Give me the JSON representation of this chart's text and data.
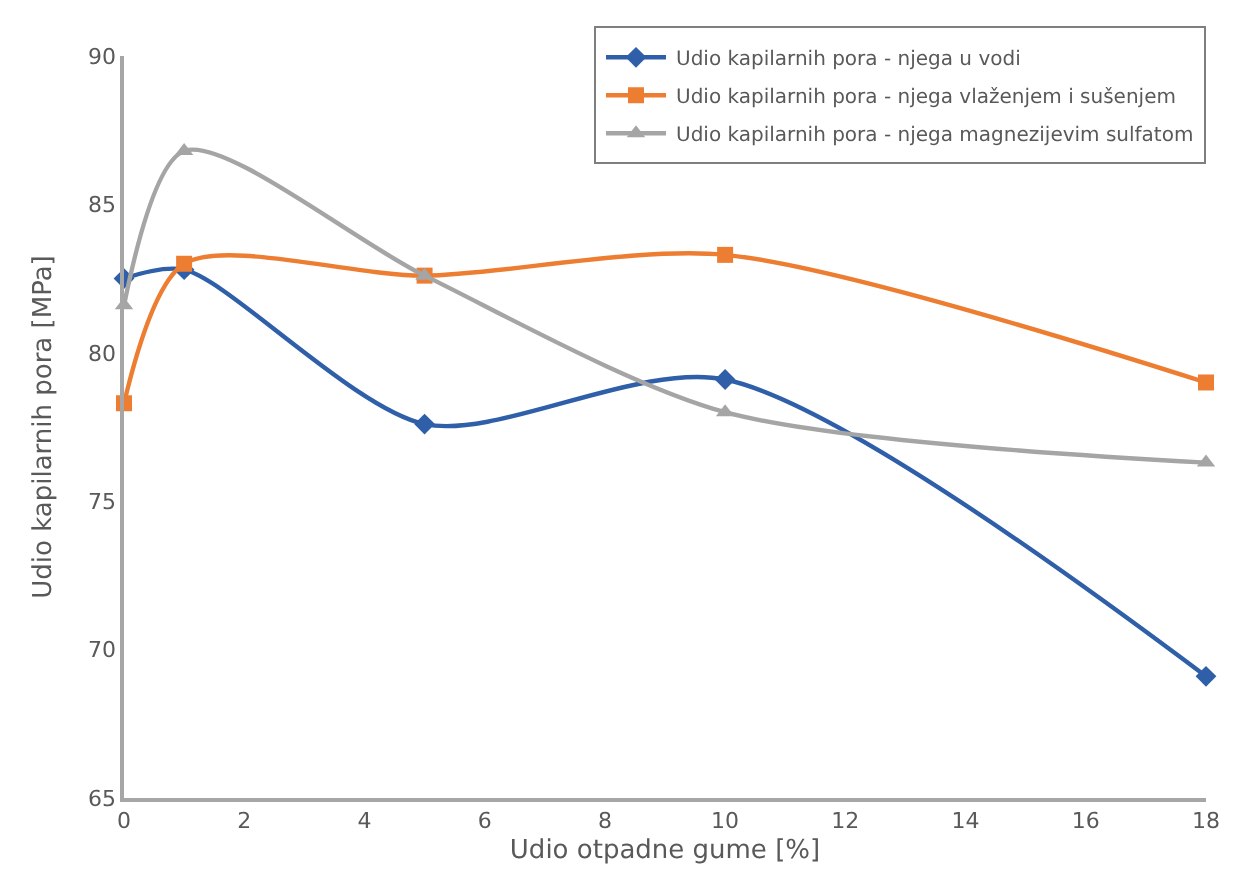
{
  "chart_data": {
    "type": "line",
    "xlabel": "Udio otpadne gume [%]",
    "ylabel": "Udio kapilarnih pora [MPa]",
    "x": [
      0,
      1,
      5,
      10,
      18
    ],
    "series": [
      {
        "name": "Udio kapilarnih pora - njega u vodi",
        "color": "#2e5fa8",
        "marker": "diamond",
        "values": [
          82.5,
          82.8,
          77.6,
          79.1,
          69.1
        ]
      },
      {
        "name": "Udio kapilarnih pora - njega vlaženjem i sušenjem",
        "color": "#ed7d31",
        "marker": "square",
        "values": [
          78.3,
          83.0,
          82.6,
          83.3,
          79.0
        ]
      },
      {
        "name": "Udio kapilarnih pora - njega magnezijevim sulfatom",
        "color": "#a5a5a5",
        "marker": "triangle",
        "values": [
          81.6,
          86.8,
          82.6,
          78.0,
          76.3
        ]
      }
    ],
    "xlim": [
      0,
      18
    ],
    "xticks": [
      0,
      2,
      4,
      6,
      8,
      10,
      12,
      14,
      16,
      18
    ],
    "ylim": [
      65,
      90
    ],
    "yticks": [
      65,
      70,
      75,
      80,
      85,
      90
    ],
    "grid": false,
    "legend": "top right"
  }
}
